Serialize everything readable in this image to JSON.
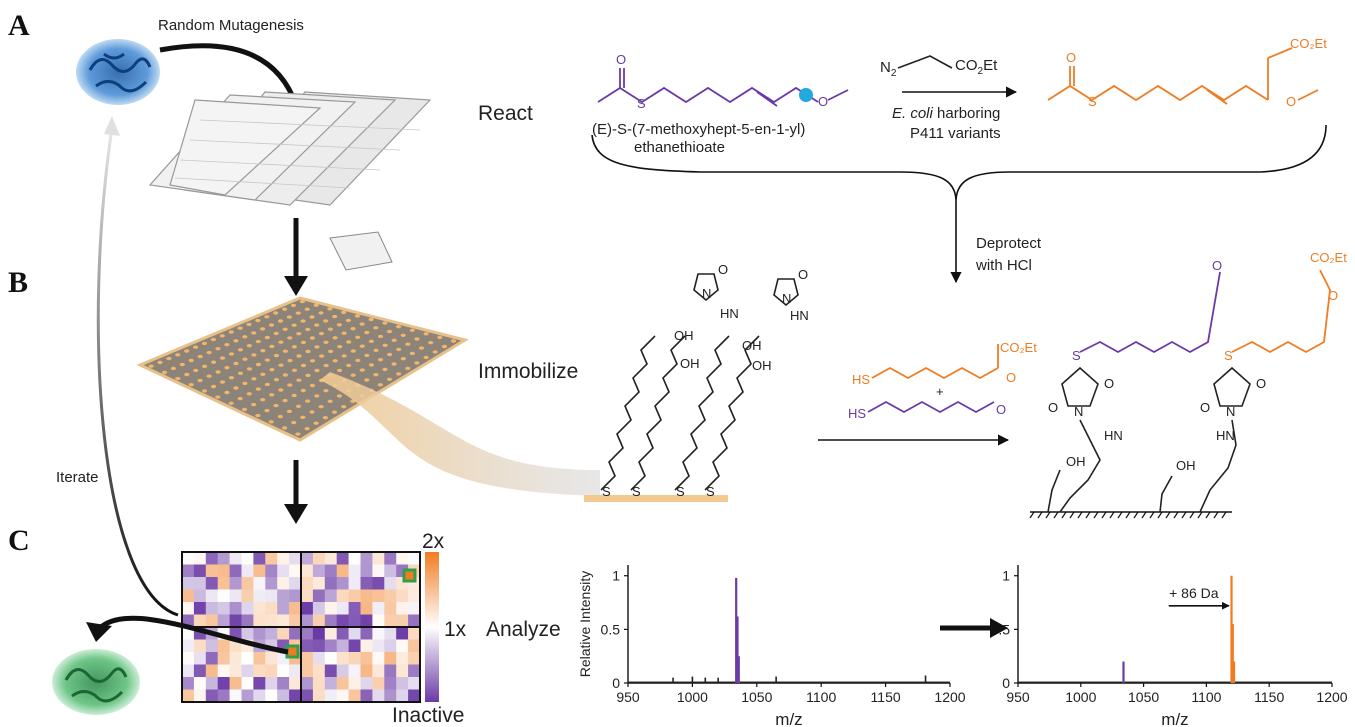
{
  "panels": {
    "a": "A",
    "b": "B",
    "c": "C"
  },
  "steps": {
    "random_mutagenesis": "Random Mutagenesis",
    "react": "React",
    "immobilize": "Immobilize",
    "analyze": "Analyze",
    "iterate": "Iterate",
    "deprotect_line1": "Deprotect",
    "deprotect_line2": "with HCl"
  },
  "reaction": {
    "reagent_n2": "N",
    "reagent_co2et": "CO",
    "reagent_et": "Et",
    "catalyst_italic": "E. coli",
    "catalyst_rest": " harboring",
    "catalyst_line2": "P411 variants",
    "substrate_line1": "(E)-S-(7-methoxyhept-5-en-1-yl)",
    "substrate_line2": "ethanethioate"
  },
  "atoms": {
    "O": "O",
    "S": "S",
    "SH": "HS",
    "N": "N",
    "HN": "HN",
    "OH": "OH",
    "plus": "+",
    "co2et": "CO₂Et"
  },
  "heatmap": {
    "scale_max": "2x",
    "scale_mid": "1x",
    "scale_min": "Inactive",
    "colors": {
      "low": "#6b3aa6",
      "mid": "#ffffff",
      "high": "#f07c22",
      "hit": "#2e9e4f"
    }
  },
  "chart_data": [
    {
      "type": "line",
      "xlabel": "m/z",
      "ylabel": "Relative Intensity",
      "xlim": [
        950,
        1200
      ],
      "ylim": [
        0,
        1.1
      ],
      "xticks": [
        "950",
        "1000",
        "1050",
        "1100",
        "1150",
        "1200"
      ],
      "yticks": [
        "0",
        "0.5",
        "1"
      ],
      "series": [
        {
          "color": "#6b3aa6",
          "peaks": [
            [
              1034,
              0.98
            ],
            [
              1035,
              0.62
            ],
            [
              1036,
              0.25
            ]
          ]
        }
      ],
      "noise_peaks": [
        [
          985,
          0.05
        ],
        [
          1000,
          0.06
        ],
        [
          1010,
          0.05
        ],
        [
          1020,
          0.05
        ],
        [
          1065,
          0.06
        ],
        [
          1181,
          0.07
        ]
      ]
    },
    {
      "type": "line",
      "xlabel": "m/z",
      "ylabel": "",
      "xlim": [
        950,
        1200
      ],
      "ylim": [
        0,
        1.1
      ],
      "xticks": [
        "950",
        "1000",
        "1050",
        "1100",
        "1150",
        "1200"
      ],
      "yticks": [
        "0",
        "0.5",
        "1"
      ],
      "annotation": "+ 86 Da",
      "series": [
        {
          "color": "#6b3aa6",
          "peaks": [
            [
              1034,
              0.2
            ]
          ]
        },
        {
          "color": "#f07c22",
          "peaks": [
            [
              1120,
              1.0
            ],
            [
              1121,
              0.55
            ],
            [
              1122,
              0.2
            ]
          ]
        }
      ]
    }
  ]
}
